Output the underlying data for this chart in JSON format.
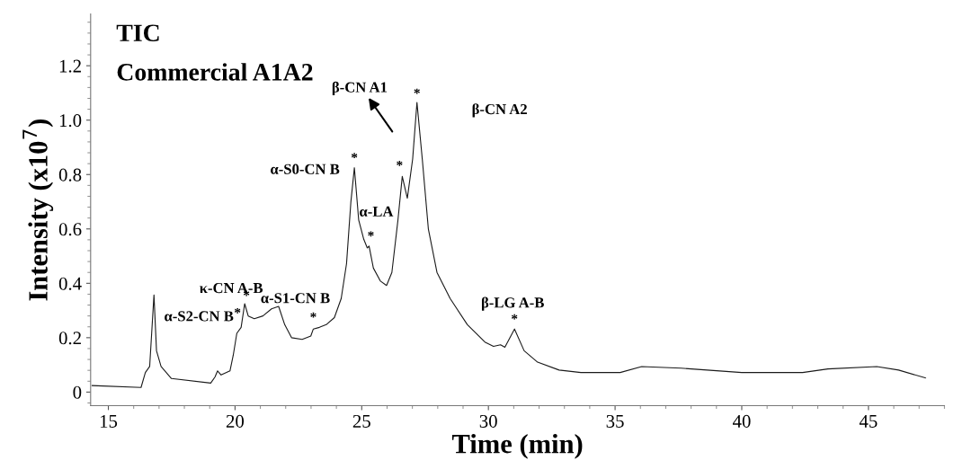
{
  "chart_data": {
    "type": "line",
    "title": "TIC",
    "subtitle": "Commercial A1A2",
    "xlabel": "Time (min)",
    "ylabel": "Intensity (x10$^{7}$)",
    "x": [
      14.36,
      16.29,
      16.46,
      16.63,
      16.8,
      16.9,
      17.08,
      17.49,
      19.04,
      19.21,
      19.31,
      19.45,
      19.8,
      19.93,
      20.07,
      20.24,
      20.38,
      20.52,
      20.76,
      21.1,
      21.44,
      21.72,
      21.96,
      22.23,
      22.65,
      22.99,
      23.09,
      23.33,
      23.6,
      23.92,
      24.19,
      24.4,
      24.57,
      24.71,
      24.88,
      25.08,
      25.22,
      25.29,
      25.46,
      25.74,
      25.98,
      26.19,
      26.43,
      26.6,
      26.8,
      27.01,
      27.18,
      27.39,
      27.63,
      27.97,
      28.49,
      29.17,
      29.86,
      30.2,
      30.48,
      30.65,
      31.03,
      31.41,
      31.94,
      32.79,
      33.65,
      35.2,
      36.05,
      37.6,
      40.0,
      42.4,
      43.4,
      45.33,
      46.19,
      47.25
    ],
    "values": [
      0.024,
      0.017,
      0.072,
      0.094,
      0.357,
      0.152,
      0.094,
      0.05,
      0.033,
      0.056,
      0.078,
      0.063,
      0.078,
      0.136,
      0.216,
      0.238,
      0.325,
      0.28,
      0.27,
      0.28,
      0.306,
      0.315,
      0.248,
      0.2,
      0.194,
      0.206,
      0.232,
      0.238,
      0.248,
      0.274,
      0.344,
      0.472,
      0.697,
      0.825,
      0.633,
      0.562,
      0.53,
      0.537,
      0.456,
      0.408,
      0.392,
      0.44,
      0.633,
      0.793,
      0.713,
      0.857,
      1.065,
      0.857,
      0.6,
      0.44,
      0.344,
      0.248,
      0.184,
      0.168,
      0.174,
      0.165,
      0.232,
      0.152,
      0.11,
      0.081,
      0.072,
      0.072,
      0.094,
      0.088,
      0.072,
      0.072,
      0.085,
      0.094,
      0.081,
      0.052
    ],
    "color": "#1a1a1a",
    "xlim": [
      14.3,
      48
    ],
    "ylim": [
      -0.05,
      1.39
    ],
    "xticks": [
      15,
      20,
      25,
      30,
      35,
      40,
      45
    ],
    "yticks": [
      0,
      0.2,
      0.4,
      0.6,
      0.8,
      {
        "value": 1.0,
        "label": "1.0"
      },
      1.2
    ],
    "grid": false,
    "legend": false,
    "marker": "none",
    "line_style": "solid",
    "annotations": [
      {
        "text": "α-S2-CN B",
        "x": 20.24,
        "y": 0.238
      },
      {
        "text": "κ-CN A-B",
        "x": 20.38,
        "y": 0.325
      },
      {
        "text": "α-S1-CN B",
        "x": 23.09,
        "y": 0.232
      },
      {
        "text": "α-S0-CN B",
        "x": 24.71,
        "y": 0.825
      },
      {
        "text": "α-LA",
        "x": 25.29,
        "y": 0.537
      },
      "β-CN A1",
      "β-CN A2",
      {
        "text": "β-LG A-B",
        "x": 31.03,
        "y": 0.232
      },
      {
        "text": "*",
        "x": 20.38,
        "y": 0.325
      },
      {
        "text": "*",
        "x": 20.24,
        "y": 0.238
      },
      {
        "text": "*",
        "x": 23.09,
        "y": 0.232
      },
      {
        "text": "*",
        "x": 24.71,
        "y": 0.825
      },
      {
        "text": "*",
        "x": 25.29,
        "y": 0.537
      },
      {
        "text": "*",
        "x": 26.6,
        "y": 0.793
      },
      {
        "text": "*",
        "x": 27.18,
        "y": 1.065
      },
      {
        "text": "*",
        "x": 31.03,
        "y": 0.232
      }
    ]
  }
}
